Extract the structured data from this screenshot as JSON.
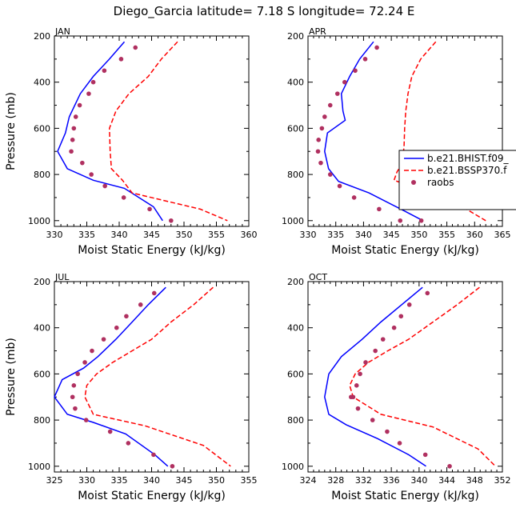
{
  "figure": {
    "title": "Diego_Garcia   latitude= 7.18 S longitude= 72.24 E"
  },
  "legend": {
    "entries": [
      {
        "label": "b.e21.BHIST.f09_",
        "color": "#0000ff",
        "style": "solid"
      },
      {
        "label": "b.e21.BSSP370.f",
        "color": "#ff0000",
        "style": "dashed"
      },
      {
        "label": "raobs",
        "color": "#b03060",
        "style": "dot"
      }
    ]
  },
  "chart_data": [
    {
      "type": "line",
      "panel_label": "JAN",
      "xlabel": "Moist Static Energy (kJ/kg)",
      "ylabel": "Pressure (mb)",
      "xlim": [
        330,
        360
      ],
      "ylim": [
        200,
        1025
      ],
      "y_inverted": true,
      "xticks": [
        330,
        335,
        340,
        345,
        350,
        355,
        360
      ],
      "xtick_labels": [
        "330",
        "335",
        "340",
        "345",
        "350",
        "355",
        "360"
      ],
      "yticks": [
        200,
        400,
        600,
        800,
        1000
      ],
      "ytick_labels": [
        "200",
        "400",
        "600",
        "800",
        "1000"
      ],
      "series": [
        {
          "name": "b.e21.BHIST.f09_",
          "style": "solid",
          "color": "#0000ff",
          "x": [
            340.8,
            338.5,
            336.0,
            334.0,
            332.3,
            331.7,
            330.5,
            332.0,
            336.0,
            340.8,
            345.3,
            346.7
          ],
          "y": [
            225,
            300,
            375,
            450,
            550,
            620,
            700,
            775,
            825,
            860,
            940,
            1000
          ]
        },
        {
          "name": "b.e21.BSSP370.f",
          "style": "dashed",
          "color": "#ff0000",
          "x": [
            349.0,
            346.5,
            344.5,
            341.5,
            339.5,
            338.5,
            338.6,
            338.8,
            340.5,
            342.0,
            352.5,
            356.7
          ],
          "y": [
            225,
            300,
            375,
            450,
            525,
            600,
            700,
            775,
            825,
            880,
            950,
            1000
          ]
        },
        {
          "name": "raobs",
          "style": "dot",
          "color": "#b03060",
          "x": [
            342.5,
            340.3,
            337.7,
            336.0,
            335.3,
            333.9,
            333.3,
            333.0,
            332.8,
            332.6,
            334.3,
            335.7,
            337.8,
            340.7,
            344.7,
            348.0
          ],
          "y": [
            250,
            300,
            350,
            400,
            450,
            500,
            550,
            600,
            650,
            700,
            750,
            800,
            850,
            900,
            950,
            1000
          ]
        }
      ]
    },
    {
      "type": "line",
      "panel_label": "APR",
      "xlabel": "Moist Static Energy (kJ/kg)",
      "ylabel": "",
      "xlim": [
        330,
        365
      ],
      "ylim": [
        200,
        1025
      ],
      "y_inverted": true,
      "xticks": [
        330,
        335,
        340,
        345,
        350,
        355,
        360,
        365
      ],
      "xtick_labels": [
        "330",
        "335",
        "340",
        "345",
        "350",
        "355",
        "360",
        "365"
      ],
      "yticks": [
        200,
        400,
        600,
        800,
        1000
      ],
      "ytick_labels": [
        "200",
        "400",
        "600",
        "800",
        "1000"
      ],
      "series": [
        {
          "name": "b.e21.BHIST.f09_",
          "style": "solid",
          "color": "#0000ff",
          "x": [
            341.8,
            339.3,
            337.5,
            336.0,
            336.3,
            336.7,
            333.5,
            333.0,
            333.7,
            335.5,
            341.0,
            347.5,
            350.7
          ],
          "y": [
            225,
            300,
            375,
            450,
            525,
            565,
            620,
            700,
            775,
            830,
            880,
            960,
            1000
          ]
        },
        {
          "name": "b.e21.BSSP370.f",
          "style": "dashed",
          "color": "#ff0000",
          "x": [
            353.0,
            350.3,
            348.7,
            348.0,
            347.6,
            347.4,
            347.3,
            347.0,
            346.0,
            345.5,
            352.0,
            358.5,
            362.0
          ],
          "y": [
            225,
            300,
            375,
            450,
            525,
            600,
            675,
            750,
            790,
            825,
            880,
            950,
            1000
          ]
        },
        {
          "name": "raobs",
          "style": "dot",
          "color": "#b03060",
          "x": [
            342.4,
            340.3,
            338.5,
            336.6,
            335.3,
            334.0,
            333.0,
            332.5,
            331.9,
            331.8,
            332.3,
            334.0,
            335.7,
            338.3,
            342.8,
            346.6,
            350.4
          ],
          "y": [
            250,
            300,
            350,
            400,
            450,
            500,
            550,
            600,
            650,
            700,
            750,
            800,
            850,
            900,
            950,
            1000,
            1000
          ]
        }
      ]
    },
    {
      "type": "line",
      "panel_label": "JUL",
      "xlabel": "Moist Static Energy (kJ/kg)",
      "ylabel": "Pressure (mb)",
      "xlim": [
        325,
        355
      ],
      "ylim": [
        200,
        1025
      ],
      "y_inverted": true,
      "xticks": [
        325,
        330,
        335,
        340,
        345,
        350,
        355
      ],
      "xtick_labels": [
        "325",
        "330",
        "335",
        "340",
        "345",
        "350",
        "355"
      ],
      "yticks": [
        200,
        400,
        600,
        800,
        1000
      ],
      "ytick_labels": [
        "200",
        "400",
        "600",
        "800",
        "1000"
      ],
      "series": [
        {
          "name": "b.e21.BHIST.f09_",
          "style": "solid",
          "color": "#0000ff",
          "x": [
            342.2,
            339.5,
            337.0,
            334.5,
            331.7,
            329.5,
            326.2,
            325.0,
            327.0,
            331.0,
            336.0,
            340.5,
            342.5
          ],
          "y": [
            225,
            300,
            375,
            450,
            525,
            575,
            625,
            700,
            775,
            810,
            860,
            950,
            1000
          ]
        },
        {
          "name": "b.e21.BSSP370.f",
          "style": "dashed",
          "color": "#ff0000",
          "x": [
            349.5,
            346.5,
            343.0,
            340.0,
            337.0,
            334.0,
            331.5,
            330.0,
            329.7,
            331.0,
            339.0,
            348.0,
            352.2
          ],
          "y": [
            225,
            300,
            375,
            450,
            500,
            550,
            600,
            650,
            700,
            775,
            825,
            910,
            1000
          ]
        },
        {
          "name": "raobs",
          "style": "dot",
          "color": "#b03060",
          "x": [
            340.4,
            338.3,
            336.1,
            334.6,
            332.6,
            330.8,
            329.7,
            328.6,
            328.0,
            327.8,
            328.2,
            329.9,
            333.6,
            336.4,
            340.3,
            343.2
          ],
          "y": [
            250,
            300,
            350,
            400,
            450,
            500,
            550,
            600,
            650,
            700,
            750,
            800,
            850,
            900,
            950,
            1000
          ]
        }
      ]
    },
    {
      "type": "line",
      "panel_label": "OCT",
      "xlabel": "Moist Static Energy (kJ/kg)",
      "ylabel": "",
      "xlim": [
        324,
        352
      ],
      "ylim": [
        200,
        1025
      ],
      "y_inverted": true,
      "xticks": [
        324,
        328,
        332,
        336,
        340,
        344,
        348,
        352
      ],
      "xtick_labels": [
        "324",
        "328",
        "332",
        "336",
        "340",
        "344",
        "348",
        "352"
      ],
      "yticks": [
        200,
        400,
        600,
        800,
        1000
      ],
      "ytick_labels": [
        "200",
        "400",
        "600",
        "800",
        "1000"
      ],
      "series": [
        {
          "name": "b.e21.BHIST.f09_",
          "style": "solid",
          "color": "#0000ff",
          "x": [
            340.5,
            337.5,
            334.5,
            331.8,
            328.8,
            327.0,
            326.4,
            327.0,
            329.5,
            334.0,
            338.5,
            341.0
          ],
          "y": [
            225,
            300,
            375,
            450,
            525,
            600,
            700,
            775,
            820,
            880,
            950,
            1000
          ]
        },
        {
          "name": "b.e21.BSSP370.f",
          "style": "dashed",
          "color": "#ff0000",
          "x": [
            348.7,
            345.5,
            342.0,
            338.5,
            335.5,
            332.7,
            330.8,
            330.0,
            330.5,
            334.5,
            342.0,
            348.5,
            351.0
          ],
          "y": [
            225,
            300,
            375,
            450,
            500,
            550,
            600,
            650,
            700,
            775,
            830,
            925,
            1000
          ]
        },
        {
          "name": "raobs",
          "style": "dot",
          "color": "#b03060",
          "x": [
            341.2,
            338.6,
            337.4,
            336.4,
            334.8,
            333.7,
            332.3,
            331.5,
            331.0,
            330.5,
            330.2,
            331.2,
            333.3,
            335.4,
            337.2,
            340.9,
            344.4
          ],
          "y": [
            250,
            300,
            350,
            400,
            450,
            500,
            550,
            600,
            650,
            700,
            700,
            750,
            800,
            850,
            900,
            950,
            1000
          ]
        }
      ]
    }
  ]
}
